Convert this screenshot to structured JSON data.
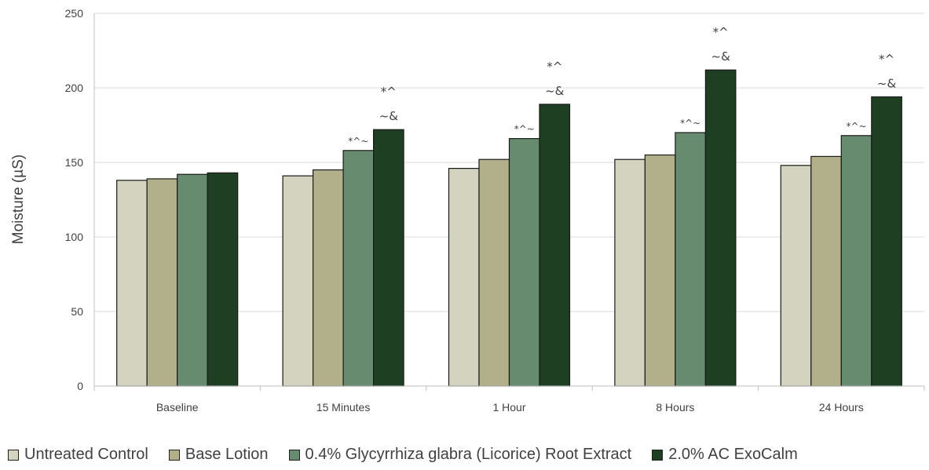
{
  "chart_data": {
    "type": "bar",
    "ylabel": "Moisture (µS)",
    "ylim": [
      0,
      250
    ],
    "yticks": [
      "0",
      "50",
      "100",
      "150",
      "200",
      "250"
    ],
    "grid": true,
    "legend_position": "bottom",
    "categories": [
      "Baseline",
      "15 Minutes",
      "1 Hour",
      "8 Hours",
      "24 Hours"
    ],
    "series": [
      {
        "name": "Untreated Control",
        "color": "#d3d3bf",
        "values": [
          138,
          141,
          146,
          152,
          148
        ]
      },
      {
        "name": "Base Lotion",
        "color": "#b2b08a",
        "values": [
          139,
          145,
          152,
          155,
          154
        ]
      },
      {
        "name": "0.4% Glycyrrhiza glabra (Licorice) Root Extract",
        "color": "#678b6e",
        "values": [
          142,
          158,
          166,
          170,
          168
        ]
      },
      {
        "name": "2.0% AC ExoCalm",
        "color": "#1e3f21",
        "values": [
          143,
          172,
          189,
          212,
          194
        ]
      }
    ],
    "annotations": [
      {
        "category": 1,
        "series": 2,
        "lines": [
          "*^~"
        ],
        "small": true
      },
      {
        "category": 1,
        "series": 3,
        "lines": [
          "*^",
          "~&"
        ]
      },
      {
        "category": 2,
        "series": 2,
        "lines": [
          "*^~"
        ],
        "small": true
      },
      {
        "category": 2,
        "series": 3,
        "lines": [
          "*^",
          "~&"
        ]
      },
      {
        "category": 3,
        "series": 2,
        "lines": [
          "*^~"
        ],
        "small": true
      },
      {
        "category": 3,
        "series": 3,
        "lines": [
          "*^",
          "~&"
        ]
      },
      {
        "category": 4,
        "series": 2,
        "lines": [
          "*^~"
        ],
        "small": true
      },
      {
        "category": 4,
        "series": 3,
        "lines": [
          "*^",
          "~&"
        ]
      }
    ]
  }
}
